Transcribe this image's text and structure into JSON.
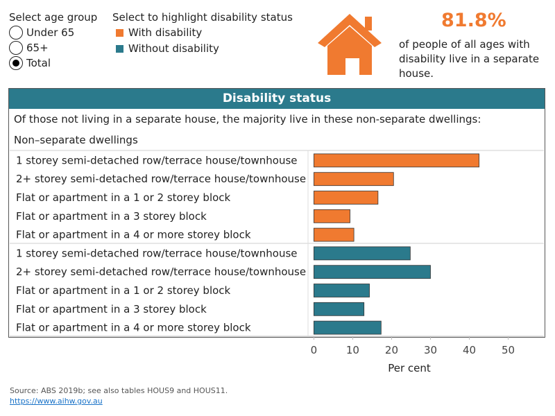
{
  "filters": {
    "age_group_title": "Select age group",
    "age_options": [
      {
        "label": "Under 65",
        "selected": false
      },
      {
        "label": "65+",
        "selected": false
      },
      {
        "label": "Total",
        "selected": true
      }
    ],
    "highlight_title": "Select to highlight disability status",
    "legend": [
      {
        "label": "With disability",
        "color": "#f07a30"
      },
      {
        "label": "Without disability",
        "color": "#2b7a8c"
      }
    ]
  },
  "stat": {
    "value": "81.8%",
    "text": "of people of all ages with disability live in a separate house.",
    "color": "#f07a30",
    "icon": "house-icon"
  },
  "chart_header": "Disability status",
  "header_color": "#2b7a8c",
  "intro_text": "Of those not living in a separate house, the majority live in these non-separate dwellings:",
  "dwelling_heading": "Non–separate dwellings",
  "footer": {
    "source": "Source: ABS 2019b; see also tables HOUS9 and HOUS11.",
    "link": "https://www.aihw.gov.au"
  },
  "chart_data": {
    "type": "bar",
    "orientation": "horizontal",
    "categories": [
      "1 storey semi-detached row/terrace house/townhouse",
      "2+ storey semi-detached row/terrace house/townhouse",
      "Flat or apartment in a 1 or 2 storey block",
      "Flat or apartment in a 3 storey block",
      "Flat or apartment in a 4 or more storey block"
    ],
    "series": [
      {
        "name": "With disability",
        "color": "#f07a30",
        "values": [
          42.5,
          20.5,
          16.5,
          9.3,
          10.3
        ]
      },
      {
        "name": "Without disability",
        "color": "#2b7a8c",
        "values": [
          24.8,
          30.0,
          14.3,
          12.9,
          17.3
        ]
      }
    ],
    "xlabel": "Per cent",
    "xticks": [
      0,
      10,
      20,
      30,
      40,
      50
    ],
    "xlim": [
      -1.5,
      59
    ]
  }
}
